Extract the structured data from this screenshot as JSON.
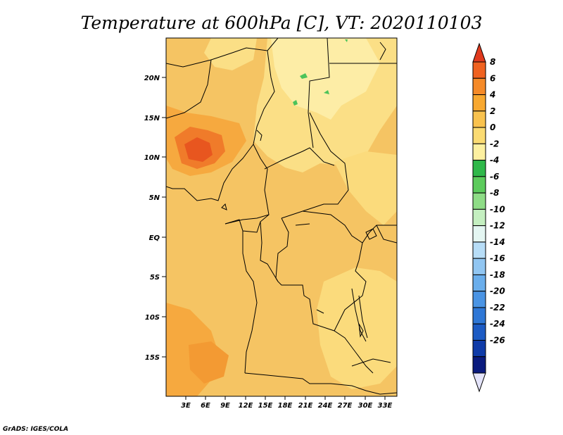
{
  "title": "Temperature at 600hPa [C], VT: 2020110103",
  "credit": "GrADS: IGES/COLA",
  "map": {
    "background_color": "#F5C463",
    "lat_ticks": [
      "20N",
      "15N",
      "10N",
      "5N",
      "EQ",
      "5S",
      "10S",
      "15S"
    ],
    "lon_ticks": [
      "3E",
      "6E",
      "9E",
      "12E",
      "15E",
      "18E",
      "21E",
      "24E",
      "27E",
      "30E",
      "33E"
    ]
  },
  "colorbar": {
    "levels": [
      "8",
      "6",
      "4",
      "2",
      "0",
      "-2",
      "-4",
      "-6",
      "-8",
      "-10",
      "-12",
      "-14",
      "-16",
      "-18",
      "-20",
      "-22",
      "-24",
      "-26"
    ],
    "colors": [
      "#E03A1E",
      "#F06220",
      "#F58A28",
      "#F8A830",
      "#F9C24E",
      "#FBDB72",
      "#FDF0A0",
      "#2FB84A",
      "#5CCB5C",
      "#8EDC86",
      "#C4EFC0",
      "#E4F6F2",
      "#B7DDF7",
      "#91C6F2",
      "#6AAEEC",
      "#4A94E4",
      "#2E77D6",
      "#1C5BC4",
      "#0F3BA8",
      "#0A1B7E",
      "#E4E4FA"
    ]
  }
}
